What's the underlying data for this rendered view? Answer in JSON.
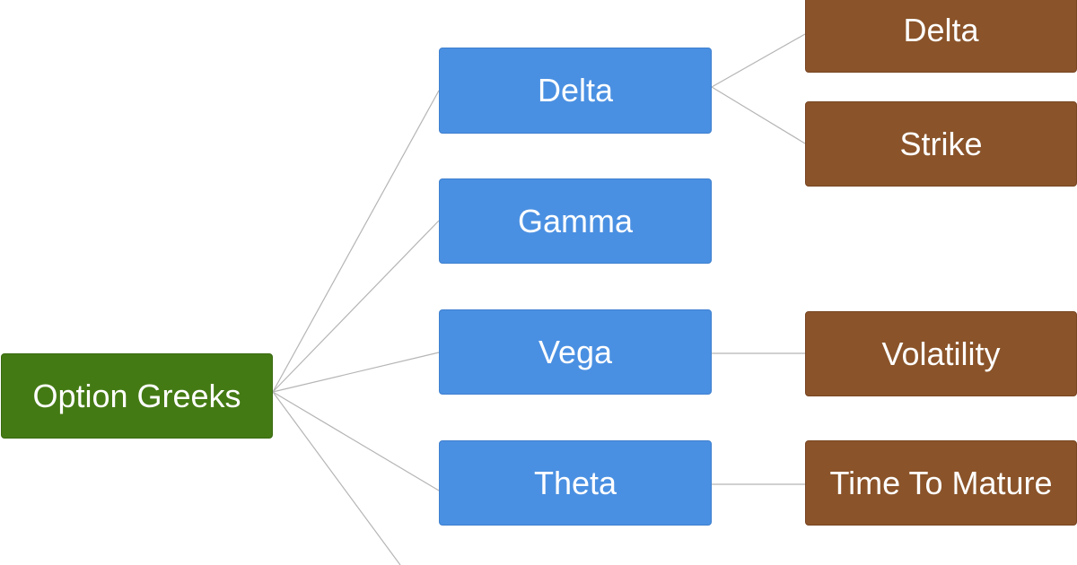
{
  "root": {
    "label": "Option Greeks"
  },
  "branches": [
    {
      "label": "Delta",
      "children": [
        "Delta",
        "Strike"
      ]
    },
    {
      "label": "Gamma",
      "children": []
    },
    {
      "label": "Vega",
      "children": [
        "Volatility"
      ]
    },
    {
      "label": "Theta",
      "children": [
        "Time To Mature"
      ]
    }
  ],
  "colors": {
    "root": "#447a14",
    "branch": "#4a90e2",
    "leaf": "#8a5329",
    "connector": "#b5b5b5"
  }
}
